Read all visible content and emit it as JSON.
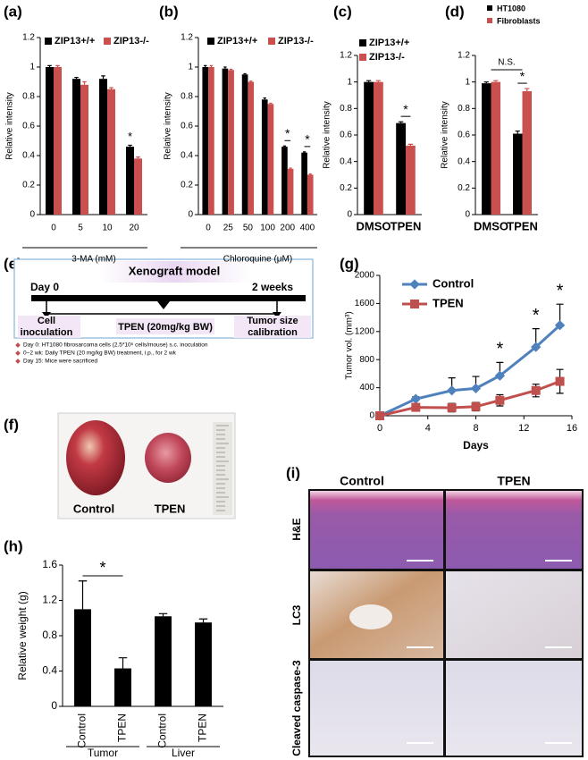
{
  "chart_data": [
    {
      "type": "bar",
      "panel": "(a)",
      "y_label": "Relative intensity",
      "x_label": "3-MA (mM)",
      "categories": [
        "0",
        "5",
        "10",
        "20"
      ],
      "series": [
        {
          "name": "ZIP13+/+",
          "color": "#000000",
          "values": [
            1.0,
            0.92,
            0.92,
            0.46
          ],
          "errors": [
            0.01,
            0.01,
            0.02,
            0.01
          ]
        },
        {
          "name": "ZIP13-/-",
          "color": "#c9504f",
          "values": [
            1.0,
            0.88,
            0.85,
            0.38
          ],
          "errors": [
            0.01,
            0.02,
            0.01,
            0.01
          ]
        }
      ],
      "ylim": [
        0,
        1.2
      ],
      "yticks": [
        0,
        0.2,
        0.4,
        0.6,
        0.8,
        1,
        1.2
      ],
      "annotations": [
        "*"
      ]
    },
    {
      "type": "bar",
      "panel": "(b)",
      "y_label": "Relative intensity",
      "x_label": "Chloroquine (μM)",
      "categories": [
        "0",
        "25",
        "50",
        "100",
        "200",
        "400"
      ],
      "series": [
        {
          "name": "ZIP13+/+",
          "color": "#000000",
          "values": [
            1.0,
            0.99,
            0.95,
            0.78,
            0.46,
            0.42
          ],
          "errors": [
            0.01,
            0.01,
            0.005,
            0.01,
            0.005,
            0.005
          ]
        },
        {
          "name": "ZIP13-/-",
          "color": "#c9504f",
          "values": [
            1.0,
            0.98,
            0.9,
            0.75,
            0.31,
            0.27
          ],
          "errors": [
            0.01,
            0.005,
            0.005,
            0.005,
            0.005,
            0.005
          ]
        }
      ],
      "ylim": [
        0,
        1.2
      ],
      "yticks": [
        0,
        0.2,
        0.4,
        0.6,
        0.8,
        1,
        1.2
      ],
      "annotations": [
        "*",
        "*"
      ]
    },
    {
      "type": "bar",
      "panel": "(c)",
      "y_label": "Relative intensity",
      "categories": [
        "DMSO",
        "TPEN"
      ],
      "series": [
        {
          "name": "ZIP13+/+",
          "color": "#000000",
          "values": [
            1.0,
            0.69
          ],
          "errors": [
            0.01,
            0.01
          ]
        },
        {
          "name": "ZIP13-/-",
          "color": "#c9504f",
          "values": [
            1.0,
            0.52
          ],
          "errors": [
            0.01,
            0.01
          ]
        }
      ],
      "ylim": [
        0,
        1.2
      ],
      "yticks": [
        0,
        0.2,
        0.4,
        0.6,
        0.8,
        1,
        1.2
      ],
      "annotations": [
        "*"
      ]
    },
    {
      "type": "bar",
      "panel": "(d)",
      "y_label": "Relative intensity",
      "categories": [
        "DMSO",
        "TPEN"
      ],
      "series": [
        {
          "name": "HT1080",
          "color": "#000000",
          "values": [
            0.99,
            0.61
          ],
          "errors": [
            0.01,
            0.02
          ]
        },
        {
          "name": "Fibroblasts",
          "color": "#c9504f",
          "values": [
            1.0,
            0.93
          ],
          "errors": [
            0.01,
            0.02
          ]
        }
      ],
      "ylim": [
        0,
        1.2
      ],
      "yticks": [
        0,
        0.2,
        0.4,
        0.6,
        0.8,
        1,
        1.2
      ],
      "annotations": [
        "N.S.",
        "*"
      ]
    },
    {
      "type": "line",
      "panel": "(g)",
      "y_label": "Tumor vol. (mm³)",
      "x_label": "Days",
      "x": [
        0,
        3,
        6,
        8,
        10,
        13,
        15
      ],
      "series": [
        {
          "name": "Control",
          "color": "#4f81bd",
          "values": [
            0,
            240,
            360,
            390,
            570,
            980,
            1290
          ],
          "errors": [
            0,
            30,
            180,
            170,
            190,
            260,
            300
          ]
        },
        {
          "name": "TPEN",
          "color": "#c0504d",
          "values": [
            0,
            120,
            115,
            130,
            220,
            360,
            490
          ],
          "errors": [
            0,
            20,
            60,
            60,
            80,
            90,
            170
          ]
        }
      ],
      "xlim": [
        0,
        16
      ],
      "xticks": [
        0,
        4,
        8,
        12,
        16
      ],
      "ylim": [
        0,
        2000
      ],
      "yticks": [
        0,
        400,
        800,
        1200,
        1600,
        2000
      ],
      "annotations": [
        "*",
        "*",
        "*"
      ]
    },
    {
      "type": "bar",
      "panel": "(h)",
      "y_label": "Relative weight (g)",
      "categories": [
        "Control",
        "TPEN",
        "Control",
        "TPEN"
      ],
      "groups": [
        "Tumor",
        "Liver"
      ],
      "values": [
        1.1,
        0.43,
        1.02,
        0.95
      ],
      "errors": [
        0.32,
        0.12,
        0.03,
        0.04
      ],
      "color": "#000000",
      "ylim": [
        0,
        1.6
      ],
      "yticks": [
        0,
        0.4,
        0.8,
        1.2,
        1.6
      ],
      "annotations": [
        "*"
      ]
    }
  ],
  "panel_e": {
    "label": "(e)",
    "title": "Xenograft model",
    "start": "Day 0",
    "end": "2 weeks",
    "steps": [
      [
        "Cell",
        "inoculation"
      ],
      [
        "TPEN (20mg/kg BW)"
      ],
      [
        "Tumor size",
        "calibration"
      ]
    ],
    "notes": [
      "Day 0: HT1080 fibrosarcoma cells (2.5*10⁶ cells/mouse) s.c. inoculation",
      "0~2 wk: Daily TPEN (20 mg/kg BW) treatment, i.p., for 2 wk",
      "Day 15: Mice were sacrificed"
    ]
  },
  "panel_f": {
    "label": "(f)",
    "captions": [
      "Control",
      "TPEN"
    ]
  },
  "panel_i": {
    "label": "(i)",
    "columns": [
      "Control",
      "TPEN"
    ],
    "rows": [
      "H&E",
      "LC3",
      "Cleaved caspase-3"
    ]
  }
}
